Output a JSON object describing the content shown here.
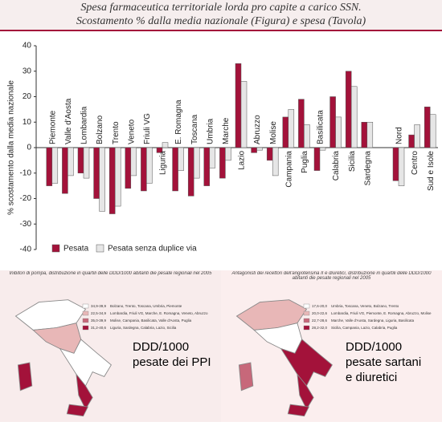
{
  "chart_data": {
    "type": "bar",
    "title": "Spesa farmaceutica territoriale lorda pro capite a carico SSN.",
    "subtitle": "Scostamento % dalla media nazionale (Figura) e spesa (Tavola)",
    "y_label": "% scostamento dalla media nazionale",
    "categories": [
      "Piemonte",
      "Valle d'Aosta",
      "Lombardia",
      "Bolzano",
      "Trento",
      "Veneto",
      "Friuli VG",
      "Liguria",
      "E. Romagna",
      "Toscana",
      "Umbria",
      "Marche",
      "Lazio",
      "Abruzzo",
      "Molise",
      "Campania",
      "Puglia",
      "Basilicata",
      "Calabria",
      "Sicilia",
      "Sardegna",
      null,
      "Nord",
      "Centro",
      "Sud e Isole"
    ],
    "series": [
      {
        "name": "Pesata",
        "color": "#a3123a",
        "values": [
          -15,
          -18,
          -10,
          -20,
          -26,
          -16,
          -17,
          -2,
          -17,
          -19,
          -15,
          -12,
          33,
          -2,
          -5,
          12,
          19,
          -9,
          20,
          30,
          10,
          null,
          -13,
          5,
          16
        ]
      },
      {
        "name": "Pesata senza duplice via",
        "color": "#e6e6e6",
        "values": [
          -14,
          -11,
          -12,
          -25,
          -23,
          -11,
          -14,
          2,
          -9,
          -12,
          -8,
          -5,
          26,
          -1,
          -11,
          15,
          9,
          -1,
          12,
          24,
          10,
          null,
          -15,
          9,
          13
        ]
      }
    ],
    "ylim": [
      -40,
      40
    ],
    "yticks": [
      -40,
      -30,
      -20,
      -10,
      0,
      10,
      20,
      30,
      40
    ],
    "legend": "bottom-left"
  },
  "maps": [
    {
      "header": "Inibitori di pompa, distribuzione in quartili delle DDD/1000 abitanti die pesate regionali nel 2005",
      "legend": [
        {
          "range": "34,9-39,9",
          "regions": "Bolzano, Trento, Toscana, Umbria, Piemonte"
        },
        {
          "range": "22,5-34,9",
          "regions": "Lombardia, Friuli VG, Marche, E. Romagna, Veneto, Abruzzo"
        },
        {
          "range": "35,0-39,9",
          "regions": "Molise, Campania, Basilicata, Valle d'Aosta, Puglia"
        },
        {
          "range": "31,2-40,6",
          "regions": "Liguria, Sardegna, Calabria, Lazio, Sicilia"
        }
      ],
      "caption": [
        "DDD/1000",
        "pesate dei PPI"
      ]
    },
    {
      "header": "Antagonisti dei recettori dell'angiotensina II e diuretici, distribuzione in quartili delle DDD/1000 abitanti die pesate regionali nel 2005",
      "legend": [
        {
          "range": "17,6-20,0",
          "regions": "Umbria, Toscana, Veneto, Bolzano, Trento"
        },
        {
          "range": "20,0-22,6",
          "regions": "Lombardia, Friuli VG, Piemonte, E. Romagna, Abruzzo, Molise"
        },
        {
          "range": "22,7-28,6",
          "regions": "Marche, Valle d'Aosta, Sardegna, Liguria, Basilicata"
        },
        {
          "range": "28,2-32,0",
          "regions": "Sicilia, Campania, Lazio, Calabria, Puglia"
        }
      ],
      "caption": [
        "DDD/1000",
        "pesate sartani",
        "e diuretici"
      ]
    }
  ]
}
